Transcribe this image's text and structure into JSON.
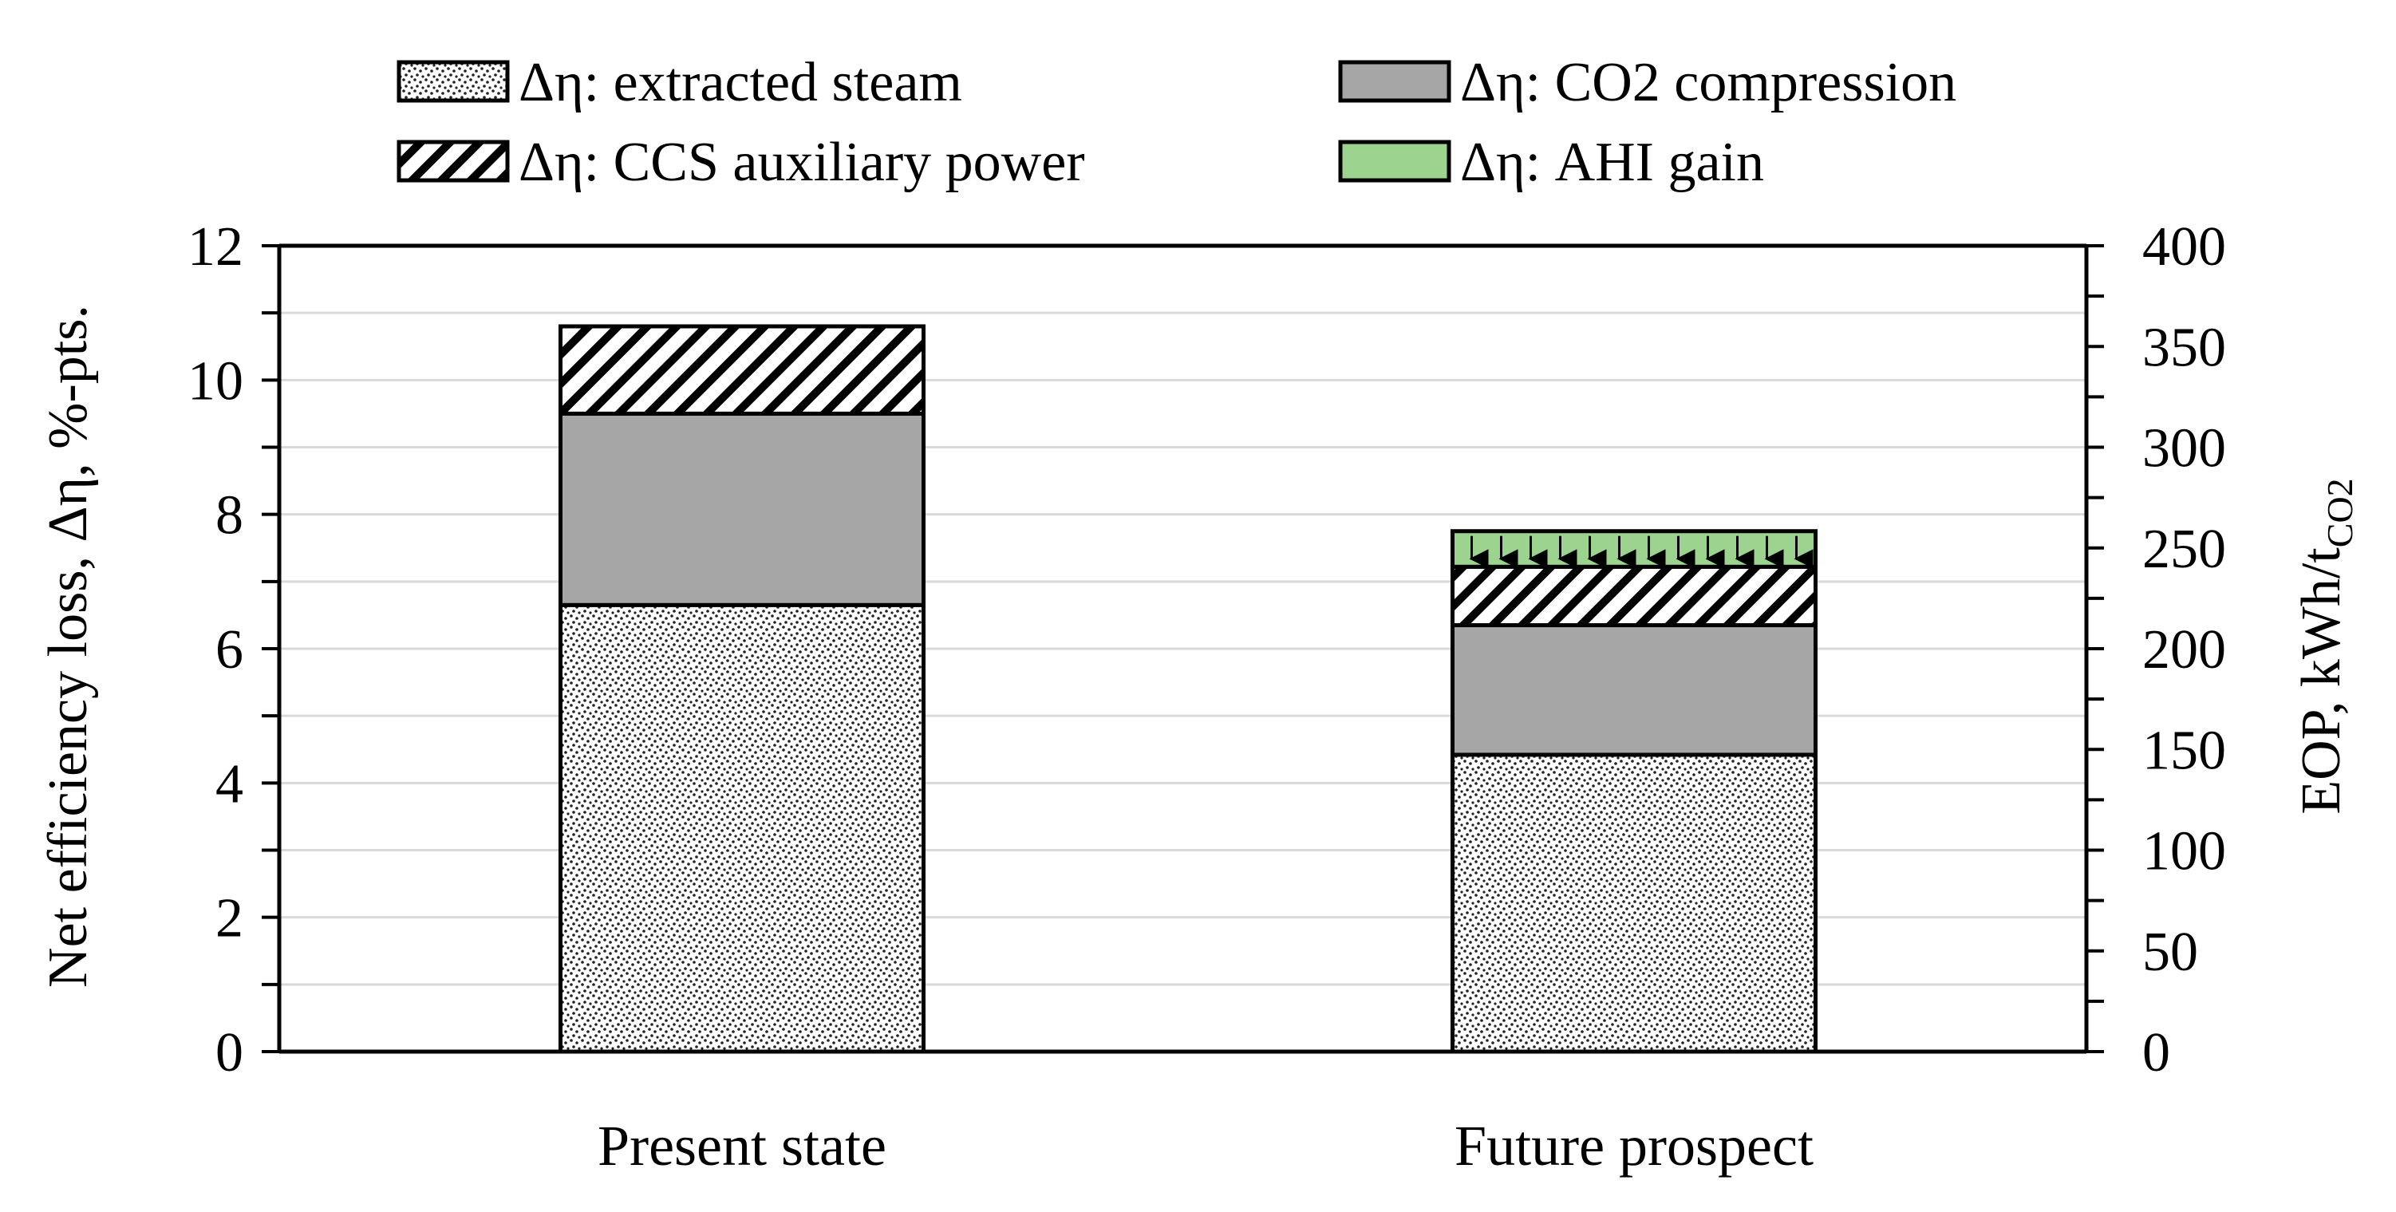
{
  "chart_data": {
    "type": "bar",
    "stacked": true,
    "categories": [
      "Present state",
      "Future prospect"
    ],
    "series": [
      {
        "name": "Δη: extracted steam",
        "values": [
          6.65,
          4.42
        ],
        "fill": "stipple"
      },
      {
        "name": "Δη: CO2 compression",
        "values": [
          2.85,
          1.93
        ],
        "fill": "#a6a6a6"
      },
      {
        "name": "Δη: CCS auxiliary power",
        "values": [
          1.3,
          0.87
        ],
        "fill": "hatch"
      },
      {
        "name": "Δη: AHI gain",
        "values": [
          0,
          0.53
        ],
        "fill": "#9bd38f"
      }
    ],
    "ylabel": "Net efficiency loss, Δη, %-pts.",
    "ylim": [
      0,
      12
    ],
    "yticks": [
      "0",
      "2",
      "4",
      "6",
      "8",
      "10",
      "12"
    ],
    "y2label_main": "EOP, kWh/t",
    "y2label_sub": "CO2",
    "y2lim": [
      0,
      400
    ],
    "y2ticks": [
      "0",
      "50",
      "100",
      "150",
      "200",
      "250",
      "300",
      "350",
      "400"
    ],
    "grid": true,
    "legend_position": "top"
  }
}
